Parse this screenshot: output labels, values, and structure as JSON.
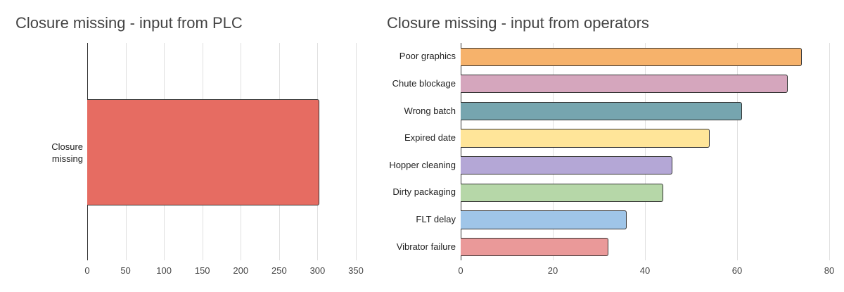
{
  "chart_data": [
    {
      "type": "bar",
      "orientation": "horizontal",
      "title": "Closure missing - input from PLC",
      "categories": [
        "Closure missing"
      ],
      "values": [
        302
      ],
      "colors": [
        "#e66c62"
      ],
      "xlabel": "",
      "ylabel": "",
      "xlim": [
        0,
        350
      ],
      "xticks": [
        "0",
        "50",
        "100",
        "150",
        "200",
        "250",
        "300",
        "350"
      ],
      "grid": true,
      "legend": "none"
    },
    {
      "type": "bar",
      "orientation": "horizontal",
      "title": "Closure missing - input from operators",
      "categories": [
        "Poor graphics",
        "Chute blockage",
        "Wrong batch",
        "Expired date",
        "Hopper cleaning",
        "Dirty packaging",
        "FLT delay",
        "Vibrator failure"
      ],
      "values": [
        74,
        71,
        61,
        54,
        46,
        44,
        36,
        32
      ],
      "colors": [
        "#f6b26b",
        "#d5a6bd",
        "#76a5af",
        "#ffe599",
        "#b4a7d6",
        "#b6d7a8",
        "#9fc5e8",
        "#ea9999"
      ],
      "xlabel": "",
      "ylabel": "",
      "xlim": [
        0,
        80
      ],
      "xticks": [
        "0",
        "20",
        "40",
        "60",
        "80"
      ],
      "grid": true,
      "legend": "none"
    }
  ],
  "left": {
    "title": "Closure missing - input from PLC",
    "category_line1": "Closure",
    "category_line2": "missing"
  },
  "right": {
    "title": "Closure missing - input from operators"
  }
}
